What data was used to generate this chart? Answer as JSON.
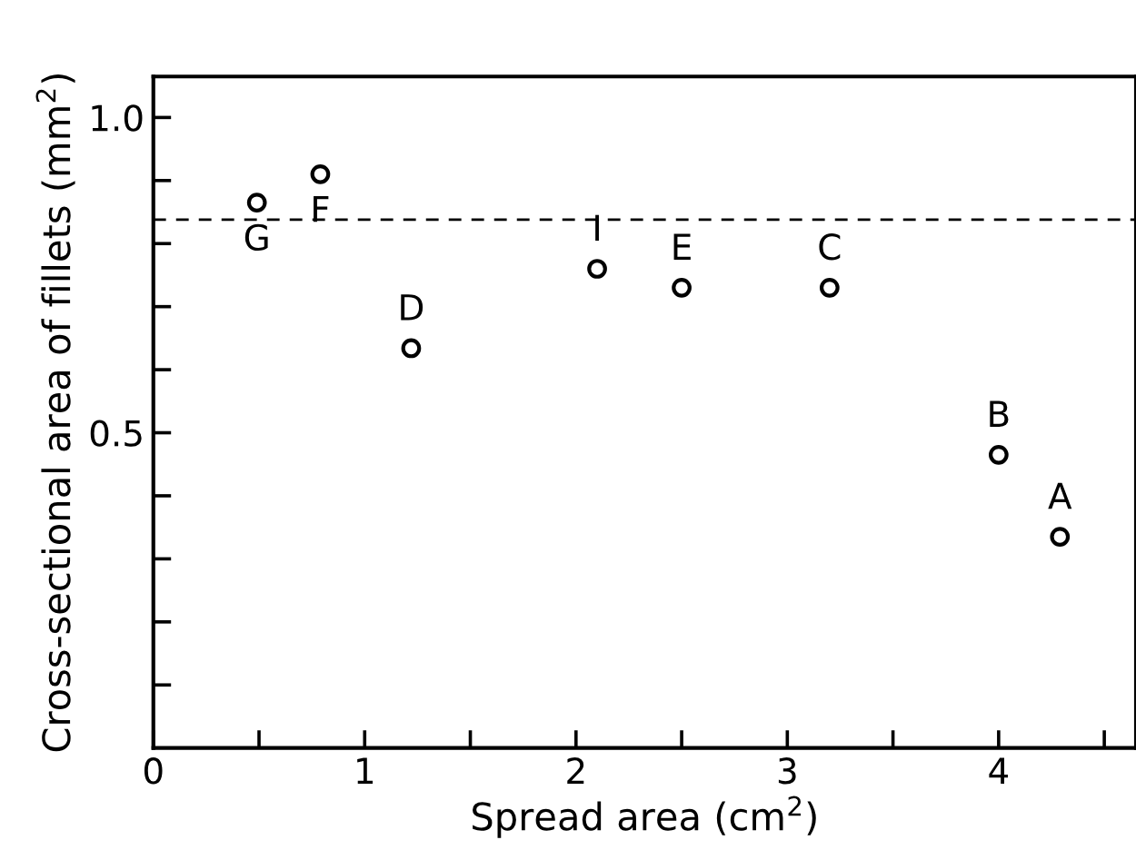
{
  "chart_data": {
    "type": "scatter",
    "xlabel": "Spread area (cm$^{2}$)",
    "ylabel": "Cross-sectional area of fillets (mm$^{2}$)",
    "series": [
      {
        "color": "#000000",
        "x": [
          0.49,
          0.79,
          1.22,
          2.1,
          2.5,
          3.2,
          4.0,
          4.29
        ],
        "values": [
          0.865,
          0.91,
          0.634,
          0.76,
          0.73,
          0.73,
          0.465,
          0.335
        ],
        "value_labels": [
          "G",
          "F",
          "D",
          "I",
          "E",
          "C",
          "B",
          "A"
        ]
      }
    ],
    "marker": "circle",
    "xlim": [
      0,
      4.65
    ],
    "ylim": [
      0,
      1.065
    ],
    "xticks": [
      0,
      {
        "value": 0.5,
        "label": null
      },
      1,
      {
        "value": 1.5,
        "label": null
      },
      2,
      {
        "value": 2.5,
        "label": null
      },
      3,
      {
        "value": 3.5,
        "label": null
      },
      4,
      {
        "value": 4.5,
        "label": null
      }
    ],
    "yticks": [
      {
        "value": 0.1,
        "label": null
      },
      {
        "value": 0.2,
        "label": null
      },
      {
        "value": 0.3,
        "label": null
      },
      {
        "value": 0.4,
        "label": null
      },
      0.5,
      {
        "value": 0.6,
        "label": null
      },
      {
        "value": 0.7,
        "label": null
      },
      {
        "value": 0.8,
        "label": null
      },
      {
        "value": 0.9,
        "label": null
      },
      {
        "value": 1.0,
        "label": "1.0"
      }
    ],
    "ref_lines": [
      {
        "axis": "y",
        "value": 0.838,
        "line_style": "dashed",
        "color": "#000000"
      }
    ],
    "grid": false
  }
}
